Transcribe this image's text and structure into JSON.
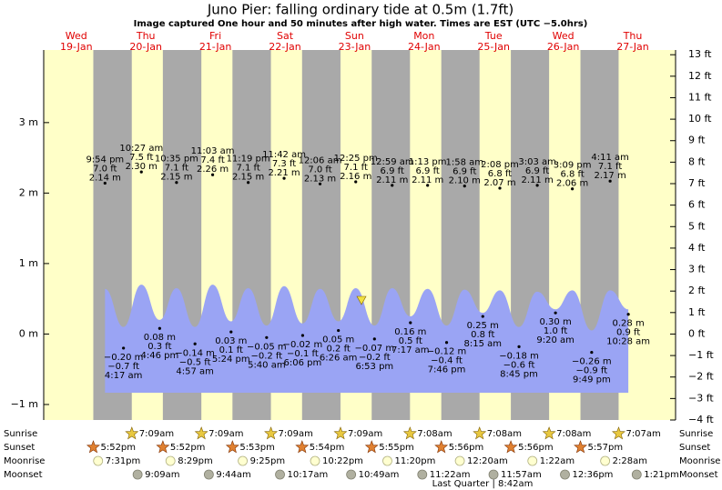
{
  "chart_data": {
    "type": "tide",
    "title": "Juno Pier: falling  ordinary tide at 0.5m (1.7ft)",
    "subtitle": "Image captured One hour and 50 minutes after high water. Times are EST (UTC −5.0hrs)",
    "categories": [
      "Wed",
      "Thu",
      "Fri",
      "Sat",
      "Sun",
      "Mon",
      "Tue",
      "Wed",
      "Thu"
    ],
    "dates": [
      "19-Jan",
      "20-Jan",
      "21-Jan",
      "22-Jan",
      "23-Jan",
      "24-Jan",
      "25-Jan",
      "26-Jan",
      "27-Jan"
    ],
    "ylim": [
      -1.22,
      4.03
    ],
    "yticks": [
      {
        "value": -1,
        "label": "−1 m"
      },
      {
        "value": 0,
        "label": "0 m"
      },
      {
        "value": 1,
        "label": "1 m"
      },
      {
        "value": 2,
        "label": "2 m"
      },
      {
        "value": 3,
        "label": "3 m"
      }
    ],
    "y2lim": [
      -4,
      13.22
    ],
    "y2ticks": [
      {
        "value": -4,
        "label": "−4 ft"
      },
      {
        "value": -3,
        "label": "−3 ft"
      },
      {
        "value": -2,
        "label": "−2 ft"
      },
      {
        "value": -1,
        "label": "−1 ft"
      },
      {
        "value": 0,
        "label": "0 ft"
      },
      {
        "value": 1,
        "label": "1 ft"
      },
      {
        "value": 2,
        "label": "2 ft"
      },
      {
        "value": 3,
        "label": "3 ft"
      },
      {
        "value": 4,
        "label": "4 ft"
      },
      {
        "value": 5,
        "label": "5 ft"
      },
      {
        "value": 6,
        "label": "6 ft"
      },
      {
        "value": 7,
        "label": "7 ft"
      },
      {
        "value": 8,
        "label": "8 ft"
      },
      {
        "value": 9,
        "label": "9 ft"
      },
      {
        "value": 10,
        "label": "10 ft"
      },
      {
        "value": 11,
        "label": "11 ft"
      },
      {
        "value": 12,
        "label": "12 ft"
      },
      {
        "value": 13,
        "label": "13 ft"
      }
    ],
    "tides": {
      "color": "#9aa4f4",
      "times": [
        "9:54 pm",
        "4:17 am",
        "10:27 am",
        "4:46 pm",
        "10:35 pm",
        "4:57 am",
        "11:03 am",
        "5:24 pm",
        "11:19 pm",
        "5:40 am",
        "11:42 am",
        "6:06 pm",
        "12:06 am",
        "6:26 am",
        "12:25 pm",
        "6:53 pm",
        "12:59 am",
        "7:17 am",
        "1:13 pm",
        "7:46 pm",
        "1:58 am",
        "8:15 am",
        "2:08 pm",
        "8:45 pm",
        "3:03 am",
        "9:20 am",
        "3:09 pm",
        "9:49 pm",
        "4:11 am",
        "10:28 am"
      ],
      "values": [
        2.14,
        -0.2,
        2.3,
        0.08,
        2.15,
        -0.14,
        2.26,
        0.03,
        2.15,
        -0.05,
        2.21,
        -0.02,
        2.13,
        0.05,
        2.16,
        -0.07,
        2.11,
        0.16,
        2.11,
        -0.12,
        2.1,
        0.25,
        2.07,
        -0.18,
        2.11,
        0.3,
        2.06,
        -0.26,
        2.17,
        0.28
      ],
      "value_labels": [
        "2.14 m",
        "−0.20 m",
        "2.30 m",
        "0.08 m",
        "2.15 m",
        "−0.14 m",
        "2.26 m",
        "0.03 m",
        "2.15 m",
        "−0.05 m",
        "2.21 m",
        "−0.02 m",
        "2.13 m",
        "0.05 m",
        "2.16 m",
        "−0.07 m",
        "2.11 m",
        "0.16 m",
        "2.11 m",
        "−0.12 m",
        "2.10 m",
        "0.25 m",
        "2.07 m",
        "−0.18 m",
        "2.11 m",
        "0.30 m",
        "2.06 m",
        "−0.26 m",
        "2.17 m",
        "0.28 m"
      ],
      "ft_labels": [
        "7.0 ft",
        "−0.7 ft",
        "7.5 ft",
        "0.3 ft",
        "7.1 ft",
        "−0.5 ft",
        "7.4 ft",
        "0.1 ft",
        "7.1 ft",
        "−0.2 ft",
        "7.3 ft",
        "−0.1 ft",
        "7.0 ft",
        "0.2 ft",
        "7.1 ft",
        "−0.2 ft",
        "6.9 ft",
        "0.5 ft",
        "6.9 ft",
        "−0.4 ft",
        "6.9 ft",
        "0.8 ft",
        "6.8 ft",
        "−0.6 ft",
        "6.9 ft",
        "1.0 ft",
        "6.8 ft",
        "−0.9 ft",
        "7.1 ft",
        "0.9 ft"
      ],
      "curve": [
        0.64,
        0.1,
        0.7,
        0.2,
        0.65,
        0.1,
        0.7,
        0.18,
        0.65,
        0.12,
        0.68,
        0.15,
        0.64,
        0.18,
        0.65,
        0.12,
        0.65,
        0.25,
        0.64,
        0.12,
        0.63,
        0.3,
        0.62,
        0.1,
        0.6,
        0.35,
        0.62,
        0.05,
        0.62,
        0.35
      ]
    },
    "events": [
      {
        "name": "Sunrise",
        "times": [
          null,
          "7:09am",
          "7:09am",
          "7:09am",
          "7:09am",
          "7:08am",
          "7:08am",
          "7:08am",
          "7:07am"
        ]
      },
      {
        "name": "Sunset",
        "times": [
          "5:52pm",
          "5:52pm",
          "5:53pm",
          "5:54pm",
          "5:55pm",
          "5:56pm",
          "5:56pm",
          "5:57pm",
          null
        ]
      },
      {
        "name": "Moonrise",
        "times": [
          "7:31pm",
          "8:29pm",
          "9:25pm",
          "10:22pm",
          "11:20pm",
          null,
          "12:20am",
          "1:22am",
          "2:28am"
        ]
      },
      {
        "name": "Moonset",
        "times": [
          null,
          "9:09am",
          "9:44am",
          "10:17am",
          "10:49am",
          "11:22am",
          "11:57am",
          "12:36pm",
          "1:21pm"
        ]
      }
    ],
    "moon_phase": "Last Quarter | 8:42am"
  }
}
